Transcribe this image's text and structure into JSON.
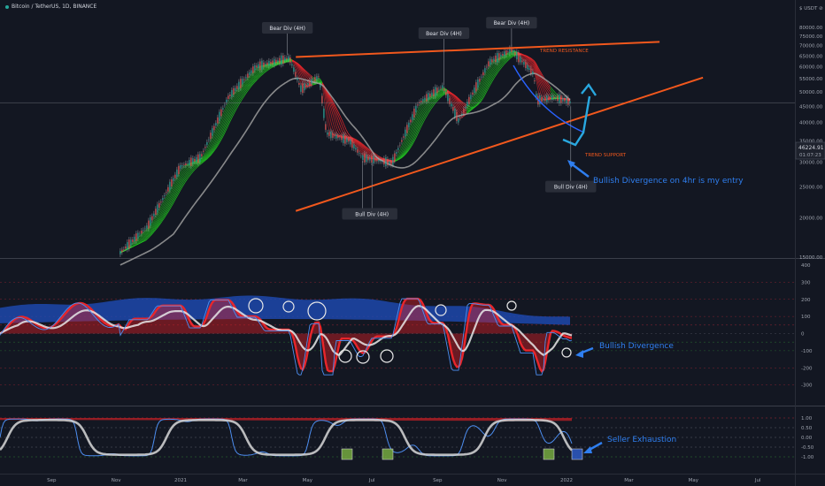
{
  "header": {
    "symbol": "Bitcoin / TetherUS, 1D, BINANCE",
    "currency": "$ USDT ⊘"
  },
  "colors": {
    "background": "#131722",
    "bull": "#21c020",
    "bear": "#e8262b",
    "trendline": "#f2581d",
    "annotation": "#2f7ff0",
    "ma": "#9e9e9e",
    "cyan_arrow": "#29a8e0"
  },
  "price_last": {
    "value": "46224.91",
    "countdown": "01:07:23"
  },
  "chart_data": [
    {
      "type": "line",
      "panel": "price",
      "scale": "log",
      "ylim": [
        15000,
        85000
      ],
      "y_ticks": [
        "80000.00",
        "75000.00",
        "70000.00",
        "65000.00",
        "60000.00",
        "55000.00",
        "50000.00",
        "45000.00",
        "40000.00",
        "35000.00",
        "30000.00",
        "25000.00",
        "20000.00",
        "15000.00"
      ],
      "x_ticks": [
        "Sep",
        "Nov",
        "2021",
        "Mar",
        "May",
        "Jul",
        "Sep",
        "Nov",
        "2022",
        "Mar",
        "May",
        "Jul"
      ],
      "series": [
        {
          "x": [
            "2020-11-05",
            "2020-12-01",
            "2021-01-01",
            "2021-01-20",
            "2021-02-15",
            "2021-03-13",
            "2021-04-14",
            "2021-04-25",
            "2021-05-12",
            "2021-05-19",
            "2021-06-10",
            "2021-06-22",
            "2021-07-20",
            "2021-08-14",
            "2021-09-06",
            "2021-09-21",
            "2021-10-05",
            "2021-10-20",
            "2021-11-10",
            "2021-12-01",
            "2021-12-04",
            "2021-12-20",
            "2022-01-01",
            "2022-01-05"
          ],
          "values": [
            15500,
            18800,
            29000,
            31000,
            48000,
            60000,
            64000,
            51000,
            56000,
            37000,
            35000,
            31000,
            29800,
            46000,
            52000,
            40500,
            50000,
            62000,
            68000,
            57000,
            47000,
            48000,
            47000,
            46224
          ]
        }
      ],
      "annotations": [
        {
          "text": "Bear Div (4H)",
          "date": "2021-04-12",
          "price": 79500
        },
        {
          "text": "Bear Div (4H)",
          "date": "2021-09-07",
          "price": 76500
        },
        {
          "text": "Bear Div (4H)",
          "date": "2021-11-10",
          "price": 82500
        },
        {
          "text": "Bull Div (",
          "date": "2021-06-22",
          "price": 20500
        },
        {
          "text": "Bull Div (4H)",
          "date": "2021-07-01",
          "price": 20500
        },
        {
          "text": "Bull Div (4H)",
          "date": "2022-01-05",
          "price": 25000
        }
      ],
      "trend_resistance": {
        "label": "TREND RESISTANCE",
        "from": [
          "2021-04-20",
          64500
        ],
        "to": [
          "2022-03-30",
          72000
        ]
      },
      "trend_support": {
        "label": "TREND SUPPORT",
        "from": [
          "2021-04-20",
          21000
        ],
        "to": [
          "2022-05-10",
          55500
        ]
      },
      "callout": "Bullish Divergence on 4hr is my entry"
    },
    {
      "type": "line",
      "panel": "oscillator-1",
      "ylim": [
        -400,
        400
      ],
      "y_ticks": [
        "400",
        "300",
        "200",
        "100",
        "0",
        "-100",
        "-200",
        "-300"
      ],
      "callout": "Bullish Divergence"
    },
    {
      "type": "line",
      "panel": "oscillator-2",
      "ylim": [
        -1.25,
        1.25
      ],
      "y_ticks": [
        "1.00",
        "0.50",
        "0.00",
        "-0.50",
        "-1.00"
      ],
      "callout": "Seller Exhaustion"
    }
  ]
}
